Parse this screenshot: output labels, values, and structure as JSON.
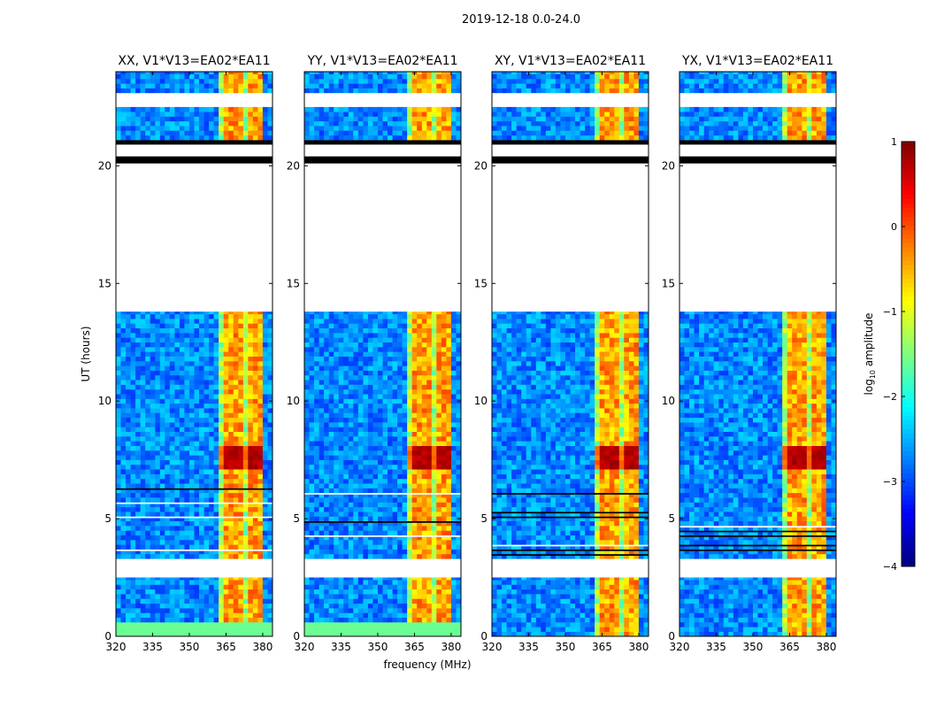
{
  "chart_data": {
    "type": "heatmap",
    "title": "2019-12-18 0.0-24.0",
    "xlabel": "frequency (MHz)",
    "ylabel": "UT (hours)",
    "xlim": [
      320,
      384
    ],
    "ylim": [
      0,
      24
    ],
    "xticks": [
      "320",
      "335",
      "350",
      "365",
      "380"
    ],
    "yticks": [
      "0",
      "5",
      "10",
      "15",
      "20"
    ],
    "panels": [
      {
        "title": "XX, V1*V13=EA02*EA11",
        "bottom_green": true
      },
      {
        "title": "YY, V1*V13=EA02*EA11",
        "bottom_green": true
      },
      {
        "title": "XY, V1*V13=EA02*EA11",
        "bottom_green": false
      },
      {
        "title": "YX, V1*V13=EA02*EA11",
        "bottom_green": false
      }
    ],
    "time_segments": [
      {
        "from": 0.0,
        "to": 2.5,
        "state": "data"
      },
      {
        "from": 2.5,
        "to": 3.3,
        "state": "flagged-white"
      },
      {
        "from": 3.3,
        "to": 6.7,
        "state": "data-striped"
      },
      {
        "from": 6.7,
        "to": 13.8,
        "state": "data"
      },
      {
        "from": 13.8,
        "to": 20.1,
        "state": "flagged-white"
      },
      {
        "from": 20.1,
        "to": 20.4,
        "state": "flagged-black"
      },
      {
        "from": 20.4,
        "to": 20.9,
        "state": "flagged-white"
      },
      {
        "from": 20.9,
        "to": 21.1,
        "state": "flagged-black"
      },
      {
        "from": 21.1,
        "to": 22.5,
        "state": "data"
      },
      {
        "from": 22.5,
        "to": 23.1,
        "state": "flagged-white"
      },
      {
        "from": 23.1,
        "to": 24.0,
        "state": "data"
      }
    ],
    "background_log_amplitude": -2.7,
    "rfi_band_mhz": [
      362,
      380
    ],
    "rfi_log_amplitude": -0.6,
    "rfi_peak_hours": [
      7.0,
      8.0
    ],
    "rfi_peak_log_amplitude": 0.6,
    "colorbar": {
      "label": "log10 amplitude",
      "label_main": "log",
      "label_sub": "10",
      "label_rest": " amplitude",
      "range": [
        -4,
        1
      ],
      "ticks": [
        "1",
        "0",
        "−1",
        "−2",
        "−3",
        "−4"
      ],
      "colormap": "jet"
    }
  }
}
